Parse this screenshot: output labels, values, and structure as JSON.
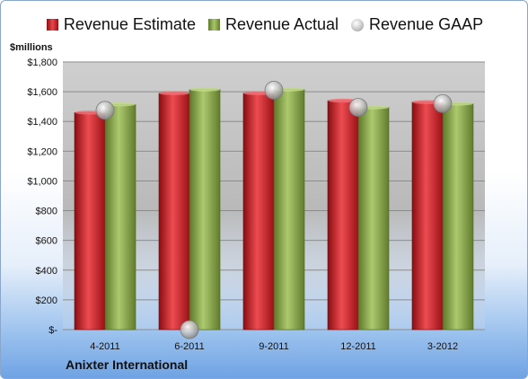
{
  "chart_data": {
    "type": "bar",
    "title": "",
    "units_label": "$millions",
    "company": "Anixter International",
    "categories": [
      "4-2011",
      "6-2011",
      "9-2011",
      "12-2011",
      "3-2012"
    ],
    "series": [
      {
        "name": "Revenue Estimate",
        "kind": "bar",
        "color": "#d32a2f",
        "values": [
          1460,
          1590,
          1590,
          1540,
          1530
        ]
      },
      {
        "name": "Revenue Actual",
        "kind": "bar",
        "color": "#8fae4f",
        "values": [
          1515,
          1615,
          1615,
          1495,
          1520
        ]
      },
      {
        "name": "Revenue GAAP",
        "kind": "marker",
        "color": "#c0c0c0",
        "values": [
          1475,
          0,
          1610,
          1495,
          1520
        ]
      }
    ],
    "ylim": [
      0,
      1800
    ],
    "ytick_labels": [
      "$-",
      "$200",
      "$400",
      "$600",
      "$800",
      "$1,000",
      "$1,200",
      "$1,400",
      "$1,600",
      "$1,800"
    ],
    "grid": true,
    "legend_position": "top"
  }
}
